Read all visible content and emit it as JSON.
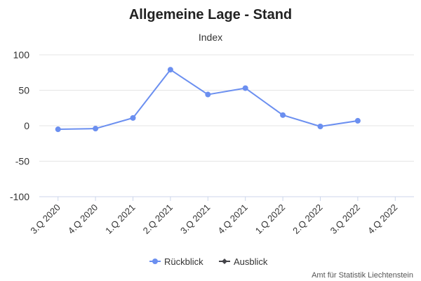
{
  "chart_data": {
    "type": "line",
    "title": "Allgemeine Lage - Stand",
    "subtitle": "Index",
    "categories": [
      "3.Q 2020",
      "4.Q 2020",
      "1.Q 2021",
      "2.Q 2021",
      "3.Q 2021",
      "4.Q 2021",
      "1.Q 2022",
      "2.Q 2022",
      "3.Q 2022",
      "4.Q 2022"
    ],
    "yticks": [
      "100",
      "50",
      "0",
      "-50",
      "-100"
    ],
    "ylim": [
      -100,
      100
    ],
    "grid": true,
    "legend_placement": "bottom-center",
    "series": [
      {
        "name": "Rückblick",
        "color": "#6b8ff0",
        "values": [
          -5,
          -4,
          11,
          79,
          44,
          53,
          15,
          -1,
          7,
          null
        ]
      },
      {
        "name": "Ausblick",
        "color": "#434348",
        "values": [
          null,
          null,
          null,
          null,
          null,
          null,
          null,
          null,
          null,
          null
        ]
      }
    ],
    "credit": "Amt für Statistik Liechtenstein"
  }
}
